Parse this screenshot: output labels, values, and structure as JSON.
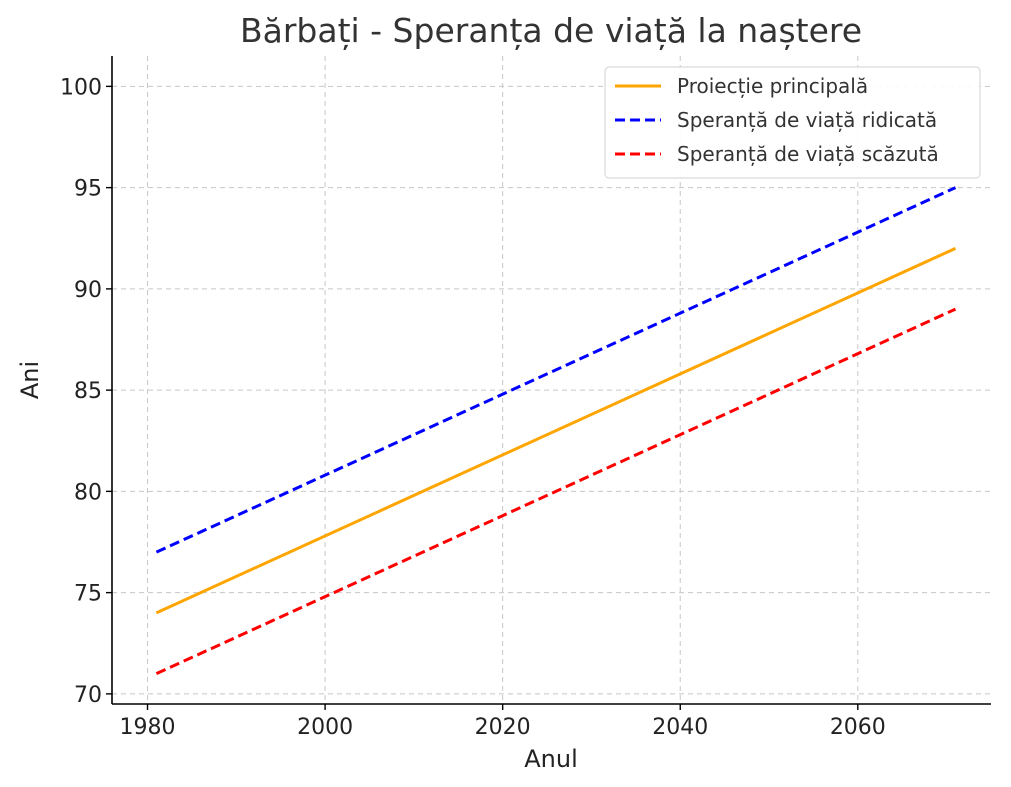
{
  "chart_data": {
    "type": "line",
    "title": "Bărbați - Speranța de viață la naștere",
    "xlabel": "Anul",
    "ylabel": "Ani",
    "xlim": [
      1976,
      2075
    ],
    "ylim": [
      69.5,
      101.5
    ],
    "xticks": [
      1980,
      2000,
      2020,
      2040,
      2060
    ],
    "yticks": [
      70,
      75,
      80,
      85,
      90,
      95,
      100
    ],
    "grid": true,
    "legend_position": "top-right",
    "series": [
      {
        "name": "Proiecție principală",
        "color": "#FFA500",
        "style": "solid",
        "x": [
          1981,
          2071
        ],
        "y": [
          74,
          92
        ]
      },
      {
        "name": "Speranță de viață ridicată",
        "color": "#0000FF",
        "style": "dashed",
        "x": [
          1981,
          2071
        ],
        "y": [
          77,
          95
        ]
      },
      {
        "name": "Speranță de viață scăzută",
        "color": "#FF0000",
        "style": "dashed",
        "x": [
          1981,
          2071
        ],
        "y": [
          71,
          89
        ]
      }
    ]
  }
}
